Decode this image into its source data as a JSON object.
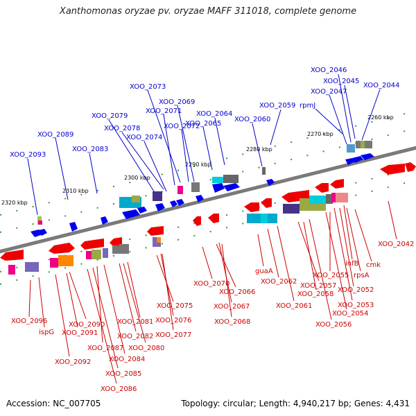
{
  "title": "Xanthomonas oryzae pv. oryzae MAFF 311018, complete genome",
  "footer": {
    "accession": "Accession: NC_007705",
    "topology": "Topology: circular; Length: 4,940,217 bp; Genes: 4,431"
  },
  "colors": {
    "forward_label": "#0000cc",
    "reverse_label": "#cc0000",
    "forward_gene": "#0000ee",
    "reverse_gene": "#ee0000",
    "backbone": "#777777",
    "ticks": "#339933"
  },
  "scale_labels": [
    "2260 kbp",
    "2270 kbp",
    "2280 kbp",
    "2290 kbp",
    "2300 kbp",
    "2310 kbp",
    "2320 kbp"
  ],
  "forward_labels": [
    "XOO_2046",
    "XOO_2045",
    "XOO_2047",
    "XOO_2044",
    "rpmJ",
    "XOO_2059",
    "XOO_2073",
    "XOO_2069",
    "XOO_2071",
    "XOO_2064",
    "XOO_2079",
    "XOO_2072",
    "XOO_2065",
    "XOO_2060",
    "XOO_2078",
    "XOO_2074",
    "XOO_2089",
    "XOO_2083",
    "XOO_2093"
  ],
  "reverse_labels": [
    "XOO_2042",
    "cmk",
    "infB",
    "rpsA",
    "XOO_2055",
    "XOO_2052",
    "XOO_2057",
    "XOO_2053",
    "XOO_2058",
    "XOO_2054",
    "XOO_2056",
    "guaA",
    "XOO_2062",
    "XOO_2061",
    "XOO_2070",
    "XOO_2066",
    "XOO_2067",
    "XOO_2068",
    "XOO_2075",
    "XOO_2076",
    "XOO_2077",
    "XOO_2081",
    "XOO_2082",
    "XOO_2080",
    "XOO_2090",
    "XOO_2091",
    "XOO_2087",
    "XOO_2084",
    "XOO_2085",
    "XOO_2086",
    "XOO_2096",
    "ispG",
    "XOO_2092"
  ]
}
